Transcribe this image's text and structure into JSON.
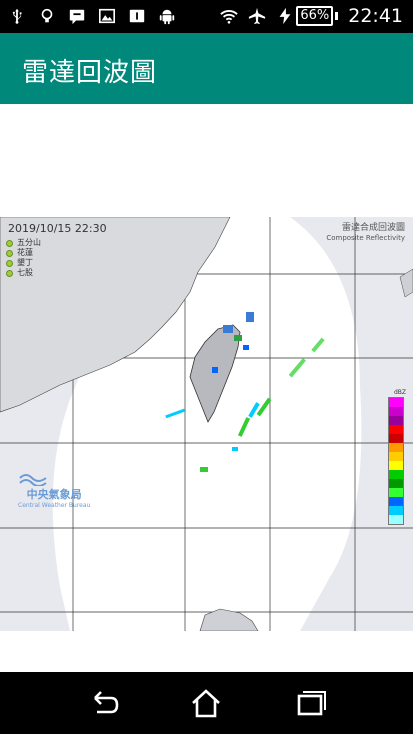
{
  "status": {
    "time": "22:41",
    "battery": "66%"
  },
  "appbar": {
    "title": "雷達回波圖"
  },
  "radar": {
    "timestamp": "2019/10/15 22:30",
    "title_zh": "雷達合成回波圖",
    "title_en": "Composite Reflectivity",
    "stations": [
      "五分山",
      "花蓮",
      "墾丁",
      "七股"
    ],
    "agency_zh": "中央氣象局",
    "agency_en": "Central Weather Bureau",
    "legend_unit": "dBZ",
    "legend_colors": [
      "#ff00ff",
      "#cc00cc",
      "#990099",
      "#ff0000",
      "#cc0000",
      "#ff9900",
      "#ffcc00",
      "#ffff00",
      "#00cc00",
      "#009900",
      "#33ff33",
      "#0066ff",
      "#00ccff",
      "#99ffff"
    ]
  }
}
